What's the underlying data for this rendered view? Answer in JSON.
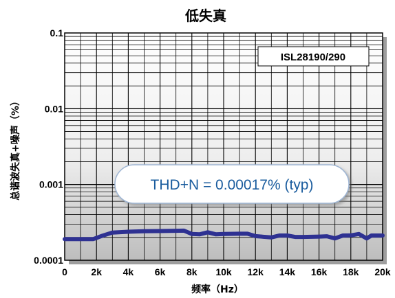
{
  "chart_data": {
    "type": "line",
    "title": "低失真",
    "xlabel": "频率（Hz）",
    "ylabel": "总谐波失真+噪声（%）",
    "x_tick_labels": [
      "0",
      "2k",
      "4k",
      "6k",
      "8k",
      "10k",
      "12k",
      "14k",
      "16k",
      "18k",
      "20k"
    ],
    "y_tick_labels": [
      "0.1",
      "0.01",
      "0.001",
      "0.0001"
    ],
    "xlim": [
      0,
      20000
    ],
    "ylim": [
      0.0001,
      0.1
    ],
    "y_scale": "log",
    "grid": true,
    "part_label": "ISL28190/290",
    "annotation": "THD+N = 0.00017% (typ)",
    "colors": {
      "series": "#2e3192",
      "annotation_text": "#1a5c9e",
      "grid": "#000000"
    },
    "series": [
      {
        "x": [
          0,
          1000,
          1800,
          2300,
          3000,
          4000,
          5000,
          6000,
          7000,
          7500,
          8000,
          8500,
          9000,
          9500,
          10000,
          11000,
          11500,
          12000,
          13000,
          13500,
          14000,
          14500,
          15000,
          16000,
          16500,
          17000,
          17500,
          18000,
          18500,
          19000,
          19300,
          20000
        ],
        "y": [
          0.00019,
          0.00019,
          0.00019,
          0.000208,
          0.000232,
          0.000238,
          0.000242,
          0.000243,
          0.000245,
          0.000246,
          0.000222,
          0.00022,
          0.000234,
          0.00022,
          0.000222,
          0.000224,
          0.000224,
          0.000208,
          0.0002,
          0.000212,
          0.000212,
          0.000203,
          0.000203,
          0.000205,
          0.000207,
          0.000194,
          0.000212,
          0.000213,
          0.000222,
          0.000194,
          0.000212,
          0.000212
        ]
      }
    ]
  }
}
